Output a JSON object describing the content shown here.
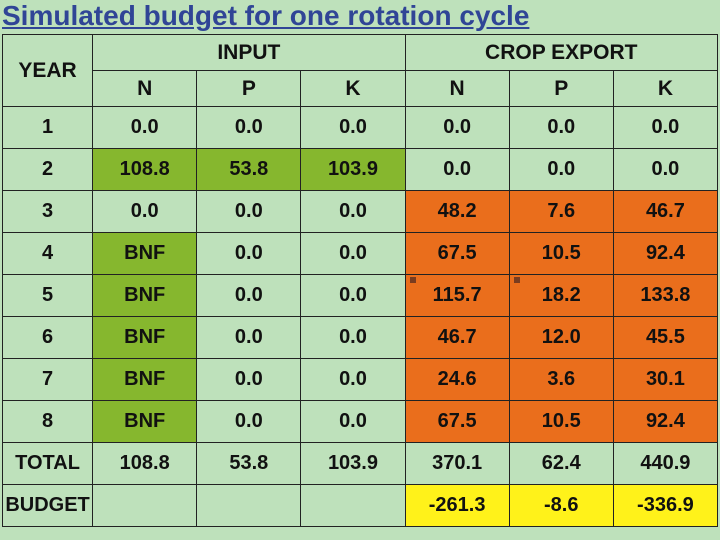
{
  "title": "Simulated budget for one rotation cycle",
  "colors": {
    "page_bg": "#bee1bb",
    "green": "#86b72e",
    "orange": "#ea6e1c",
    "yellow": "#fff21a",
    "text": "#111111",
    "title_color": "#304596",
    "border": "#222222"
  },
  "typography": {
    "title_fontsize": 28,
    "header_fontsize": 21,
    "cell_fontsize": 20,
    "font_family": "Arial",
    "weight": "bold"
  },
  "groupHeaders": {
    "year": "YEAR",
    "input": "INPUT",
    "export": "CROP EXPORT"
  },
  "subHeaders": {
    "in_n": "N",
    "in_p": "P",
    "in_k": "K",
    "ex_n": "N",
    "ex_p": "P",
    "ex_k": "K"
  },
  "rows": [
    {
      "year": "1",
      "in_n": "0.0",
      "in_p": "0.0",
      "in_k": "0.0",
      "ex_n": "0.0",
      "ex_p": "0.0",
      "ex_k": "0.0",
      "in_bg": "none",
      "ex_bg": "none"
    },
    {
      "year": "2",
      "in_n": "108.8",
      "in_p": "53.8",
      "in_k": "103.9",
      "ex_n": "0.0",
      "ex_p": "0.0",
      "ex_k": "0.0",
      "in_bg": "green",
      "ex_bg": "none"
    },
    {
      "year": "3",
      "in_n": "0.0",
      "in_p": "0.0",
      "in_k": "0.0",
      "ex_n": "48.2",
      "ex_p": "7.6",
      "ex_k": "46.7",
      "in_bg": "none",
      "ex_bg": "orange"
    },
    {
      "year": "4",
      "in_n": "BNF",
      "in_p": "0.0",
      "in_k": "0.0",
      "ex_n": "67.5",
      "ex_p": "10.5",
      "ex_k": "92.4",
      "in_n_bg": "green",
      "in_bg": "none",
      "ex_bg": "orange"
    },
    {
      "year": "5",
      "in_n": "BNF",
      "in_p": "0.0",
      "in_k": "0.0",
      "ex_n": "115.7",
      "ex_p": "18.2",
      "ex_k": "133.8",
      "in_n_bg": "green",
      "in_bg": "none",
      "ex_bg": "orange",
      "tick_n": true,
      "tick_p": true
    },
    {
      "year": "6",
      "in_n": "BNF",
      "in_p": "0.0",
      "in_k": "0.0",
      "ex_n": "46.7",
      "ex_p": "12.0",
      "ex_k": "45.5",
      "in_n_bg": "green",
      "in_bg": "none",
      "ex_bg": "orange"
    },
    {
      "year": "7",
      "in_n": "BNF",
      "in_p": "0.0",
      "in_k": "0.0",
      "ex_n": "24.6",
      "ex_p": "3.6",
      "ex_k": "30.1",
      "in_n_bg": "green",
      "in_bg": "none",
      "ex_bg": "orange"
    },
    {
      "year": "8",
      "in_n": "BNF",
      "in_p": "0.0",
      "in_k": "0.0",
      "ex_n": "67.5",
      "ex_p": "10.5",
      "ex_k": "92.4",
      "in_n_bg": "green",
      "in_bg": "none",
      "ex_bg": "orange"
    }
  ],
  "total": {
    "label": "TOTAL",
    "in_n": "108.8",
    "in_p": "53.8",
    "in_k": "103.9",
    "ex_n": "370.1",
    "ex_p": "62.4",
    "ex_k": "440.9"
  },
  "budget": {
    "label": "BUDGET",
    "ex_n": "-261.3",
    "ex_p": "-8.6",
    "ex_k": "-336.9"
  }
}
